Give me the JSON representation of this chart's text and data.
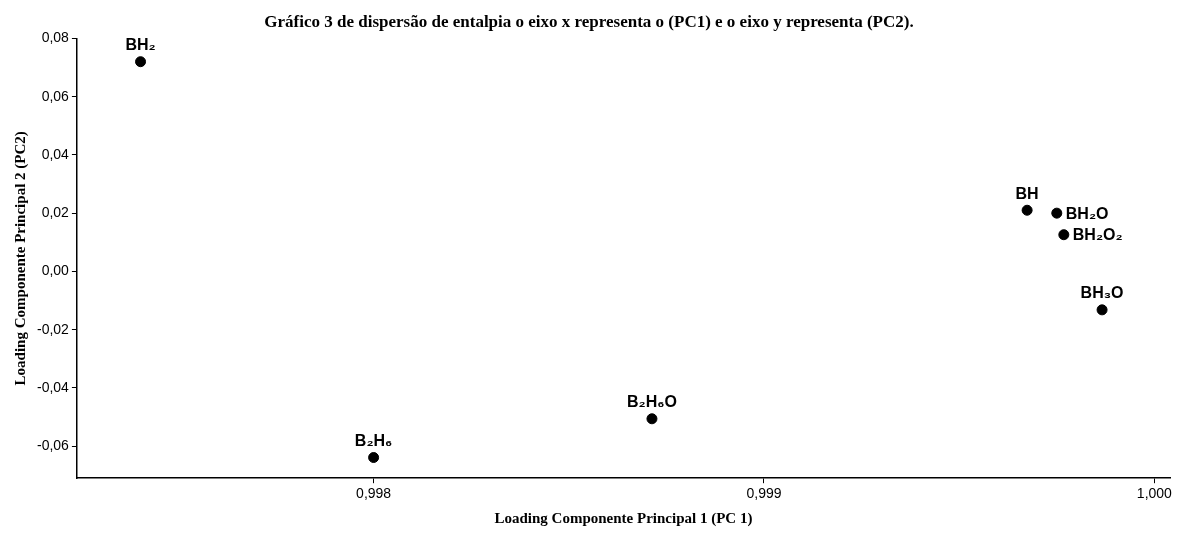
{
  "chart_data": {
    "type": "scatter",
    "title": "Gráfico 3 de dispersão de entalpia o eixo x representa o (PC1) e o eixo y representa (PC2).",
    "xlabel": "Loading Componente Principal 1 (PC 1)",
    "ylabel": "Loading Componente Principal 2 (PC2)",
    "x": [
      0.997403,
      0.998,
      0.998713,
      0.999674,
      0.99975,
      0.999768,
      0.999866
    ],
    "series": [
      {
        "color": "#000000",
        "values": [
          0.072,
          -0.0639,
          -0.0506,
          0.021,
          0.02,
          0.0126,
          -0.0132
        ]
      }
    ],
    "marker": "circle",
    "grid": false,
    "legend": false,
    "xlim": [
      0.99724,
      1.00004
    ],
    "ylim": [
      -0.071,
      0.08
    ],
    "xticks": [
      {
        "value": 0.998,
        "label": "0,998"
      },
      {
        "value": 0.999,
        "label": "0,999"
      },
      {
        "value": 1.0,
        "label": "1,000"
      }
    ],
    "yticks": [
      {
        "value": -0.06,
        "label": "-0,06"
      },
      {
        "value": -0.04,
        "label": "-0,04"
      },
      {
        "value": -0.02,
        "label": "-0,02"
      },
      {
        "value": 0,
        "label": "0,00"
      },
      {
        "value": 0.02,
        "label": "0,02"
      },
      {
        "value": 0.04,
        "label": "0,04"
      },
      {
        "value": 0.06,
        "label": "0,06"
      },
      {
        "value": 0.08,
        "label": "0,08"
      }
    ],
    "annotations": [
      {
        "text": "BH₂",
        "x": 0.997403,
        "y": 0.072
      },
      {
        "text": "B₂H₆",
        "x": 0.998,
        "y": -0.0639
      },
      {
        "text": "B₂H₆O",
        "x": 0.998713,
        "y": -0.0506
      },
      {
        "text": "BH",
        "x": 0.999674,
        "y": 0.021
      },
      {
        "text": "BH₂O",
        "x": 0.99975,
        "y": 0.02
      },
      {
        "text": "BH₂O₂",
        "x": 0.999768,
        "y": 0.0126
      },
      {
        "text": "BH₃O",
        "x": 0.999866,
        "y": -0.0132
      }
    ]
  }
}
